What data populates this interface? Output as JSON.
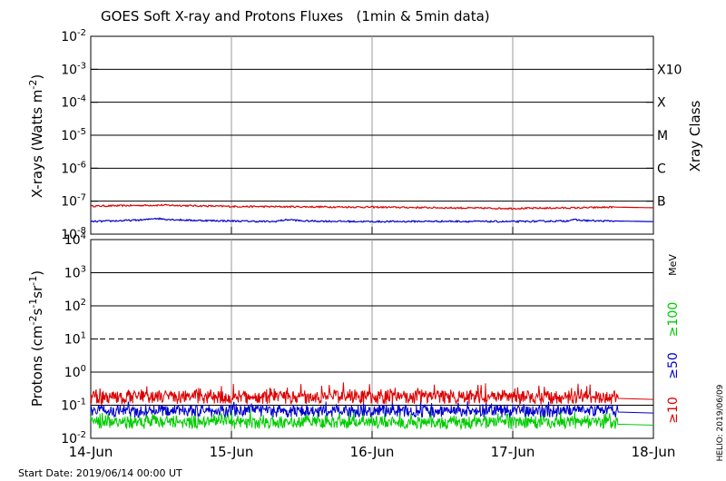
{
  "chart_data": {
    "type": "line",
    "title": "GOES Soft X-ray and Protons Fluxes   (1min & 5min data)",
    "start_date": "Start Date: 2019/06/14 00:00 UT",
    "credit": "HELIO: 2019/06/09",
    "x_tick_labels": [
      "14-Jun",
      "15-Jun",
      "16-Jun",
      "17-Jun",
      "18-Jun"
    ],
    "x_range_days": [
      0,
      4
    ],
    "xray_panel": {
      "ylabel_text": "X-rays (Watts m",
      "ylabel_sup": "-2",
      "ylabel_close": ")",
      "ylim_exp": [
        -8,
        -2
      ],
      "scale": "log",
      "y_ticks": [
        {
          "base": "10",
          "exp": "-2"
        },
        {
          "base": "10",
          "exp": "-3"
        },
        {
          "base": "10",
          "exp": "-4"
        },
        {
          "base": "10",
          "exp": "-5"
        },
        {
          "base": "10",
          "exp": "-6"
        },
        {
          "base": "10",
          "exp": "-7"
        },
        {
          "base": "10",
          "exp": "-8"
        }
      ],
      "right_axis_title": "Xray Class",
      "class_labels": [
        {
          "label": "X10",
          "exp": -3
        },
        {
          "label": "X",
          "exp": -4
        },
        {
          "label": "M",
          "exp": -5
        },
        {
          "label": "C",
          "exp": -6
        },
        {
          "label": "B",
          "exp": -7
        }
      ],
      "series": [
        {
          "color": "#dd0000",
          "log_values": [
            [
              0,
              -7.15
            ],
            [
              0.5,
              -7.12
            ],
            [
              1.0,
              -7.16
            ],
            [
              1.5,
              -7.17
            ],
            [
              2.0,
              -7.18
            ],
            [
              2.5,
              -7.2
            ],
            [
              3.0,
              -7.22
            ],
            [
              3.5,
              -7.2
            ],
            [
              3.72,
              -7.18
            ],
            [
              4.0,
              -7.2
            ]
          ]
        },
        {
          "color": "#0000cc",
          "log_values": [
            [
              0,
              -7.62
            ],
            [
              0.15,
              -7.6
            ],
            [
              0.3,
              -7.58
            ],
            [
              0.4,
              -7.56
            ],
            [
              0.45,
              -7.52
            ],
            [
              0.55,
              -7.55
            ],
            [
              0.7,
              -7.58
            ],
            [
              1.0,
              -7.6
            ],
            [
              1.3,
              -7.62
            ],
            [
              1.38,
              -7.57
            ],
            [
              1.42,
              -7.56
            ],
            [
              1.5,
              -7.6
            ],
            [
              2.0,
              -7.62
            ],
            [
              2.5,
              -7.61
            ],
            [
              3.0,
              -7.62
            ],
            [
              3.38,
              -7.6
            ],
            [
              3.42,
              -7.56
            ],
            [
              3.48,
              -7.58
            ],
            [
              3.6,
              -7.6
            ],
            [
              3.72,
              -7.6
            ],
            [
              4.0,
              -7.62
            ]
          ]
        }
      ]
    },
    "proton_panel": {
      "ylabel_text": "Protons (cm",
      "ylabel_sup1": "-2",
      "ylabel_mid1": "s",
      "ylabel_sup2": "-1",
      "ylabel_mid2": "sr",
      "ylabel_sup3": "-1",
      "ylabel_close": ")",
      "ylim_exp": [
        -2,
        4
      ],
      "scale": "log",
      "y_ticks": [
        {
          "base": "10",
          "exp": "4"
        },
        {
          "base": "10",
          "exp": "3"
        },
        {
          "base": "10",
          "exp": "2"
        },
        {
          "base": "10",
          "exp": "1"
        },
        {
          "base": "10",
          "exp": "0"
        },
        {
          "base": "10",
          "exp": "-1"
        },
        {
          "base": "10",
          "exp": "-2"
        }
      ],
      "threshold_exp": 1,
      "unit_label": "MeV",
      "energy_labels": [
        {
          "label": "≥100",
          "color": "#00cc00"
        },
        {
          "label": "≥50",
          "color": "#0000cc"
        },
        {
          "label": "≥10",
          "color": "#dd0000"
        }
      ],
      "series": [
        {
          "name": "≥10",
          "color": "#dd0000",
          "typical": 0.18,
          "range": [
            0.1,
            0.5
          ]
        },
        {
          "name": "≥50",
          "color": "#0000cc",
          "typical": 0.07,
          "range": [
            0.04,
            0.15
          ]
        },
        {
          "name": "≥100",
          "color": "#00cc00",
          "typical": 0.03,
          "range": [
            0.018,
            0.09
          ]
        }
      ],
      "data_end_day": 3.75
    }
  }
}
